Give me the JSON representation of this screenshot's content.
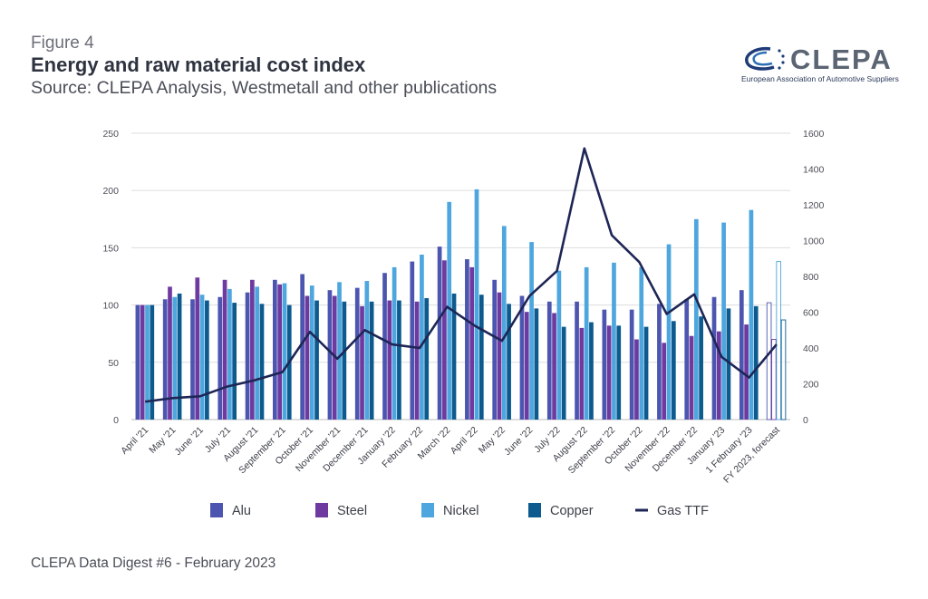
{
  "header": {
    "figure_label": "Figure 4",
    "title": "Energy and raw material cost index",
    "source": "Source: CLEPA Analysis, Westmetall and other publications"
  },
  "logo": {
    "name": "CLEPA",
    "subtitle": "European Association of Automotive Suppliers"
  },
  "footer": {
    "text": "CLEPA Data Digest #6 - February 2023"
  },
  "colors": {
    "alu": "#4c56b0",
    "steel": "#6f3aa0",
    "nickel": "#4da6de",
    "copper": "#0c5a8e",
    "gas": "#1e2656",
    "grid": "#dddddd"
  },
  "chart_data": {
    "type": "bar",
    "categories": [
      "April '21",
      "May '21",
      "June '21",
      "July '21",
      "August '21",
      "September '21",
      "October '21",
      "November '21",
      "December '21",
      "January '22",
      "February '22",
      "March '22",
      "April '22",
      "May '22",
      "June '22",
      "July '22",
      "August '22",
      "September '22",
      "October '22",
      "November '22",
      "December '22",
      "January '23",
      "1 February '23",
      "FY 2023, forecast"
    ],
    "series": [
      {
        "name": "Alu",
        "axis": "left",
        "values": [
          100,
          105,
          105,
          107,
          111,
          122,
          127,
          113,
          115,
          128,
          138,
          151,
          140,
          122,
          108,
          103,
          103,
          96,
          96,
          101,
          105,
          107,
          113,
          102
        ]
      },
      {
        "name": "Steel",
        "axis": "left",
        "values": [
          100,
          116,
          124,
          122,
          122,
          118,
          108,
          108,
          99,
          104,
          103,
          139,
          133,
          111,
          94,
          93,
          80,
          82,
          70,
          67,
          73,
          77,
          83,
          70
        ]
      },
      {
        "name": "Nickel",
        "axis": "left",
        "values": [
          100,
          107,
          109,
          114,
          116,
          119,
          117,
          120,
          121,
          133,
          144,
          190,
          201,
          169,
          155,
          130,
          133,
          137,
          133,
          153,
          175,
          172,
          183,
          138
        ]
      },
      {
        "name": "Copper",
        "axis": "left",
        "values": [
          100,
          110,
          104,
          102,
          101,
          100,
          104,
          103,
          103,
          104,
          106,
          110,
          109,
          101,
          97,
          81,
          85,
          82,
          81,
          86,
          90,
          97,
          99,
          87
        ]
      },
      {
        "name": "Gas TTF",
        "type": "line",
        "axis": "right",
        "values": [
          100,
          120,
          130,
          185,
          220,
          265,
          490,
          340,
          500,
          420,
          400,
          630,
          525,
          440,
          690,
          830,
          1515,
          1030,
          880,
          590,
          700,
          350,
          235,
          420
        ]
      }
    ],
    "y_left": {
      "min": 0,
      "max": 250,
      "ticks": [
        0,
        50,
        100,
        150,
        200,
        250
      ]
    },
    "y_right": {
      "min": 0,
      "max": 1600,
      "ticks": [
        0,
        200,
        400,
        600,
        800,
        1000,
        1200,
        1400,
        1600
      ]
    },
    "grid": true,
    "legend_position": "bottom"
  }
}
